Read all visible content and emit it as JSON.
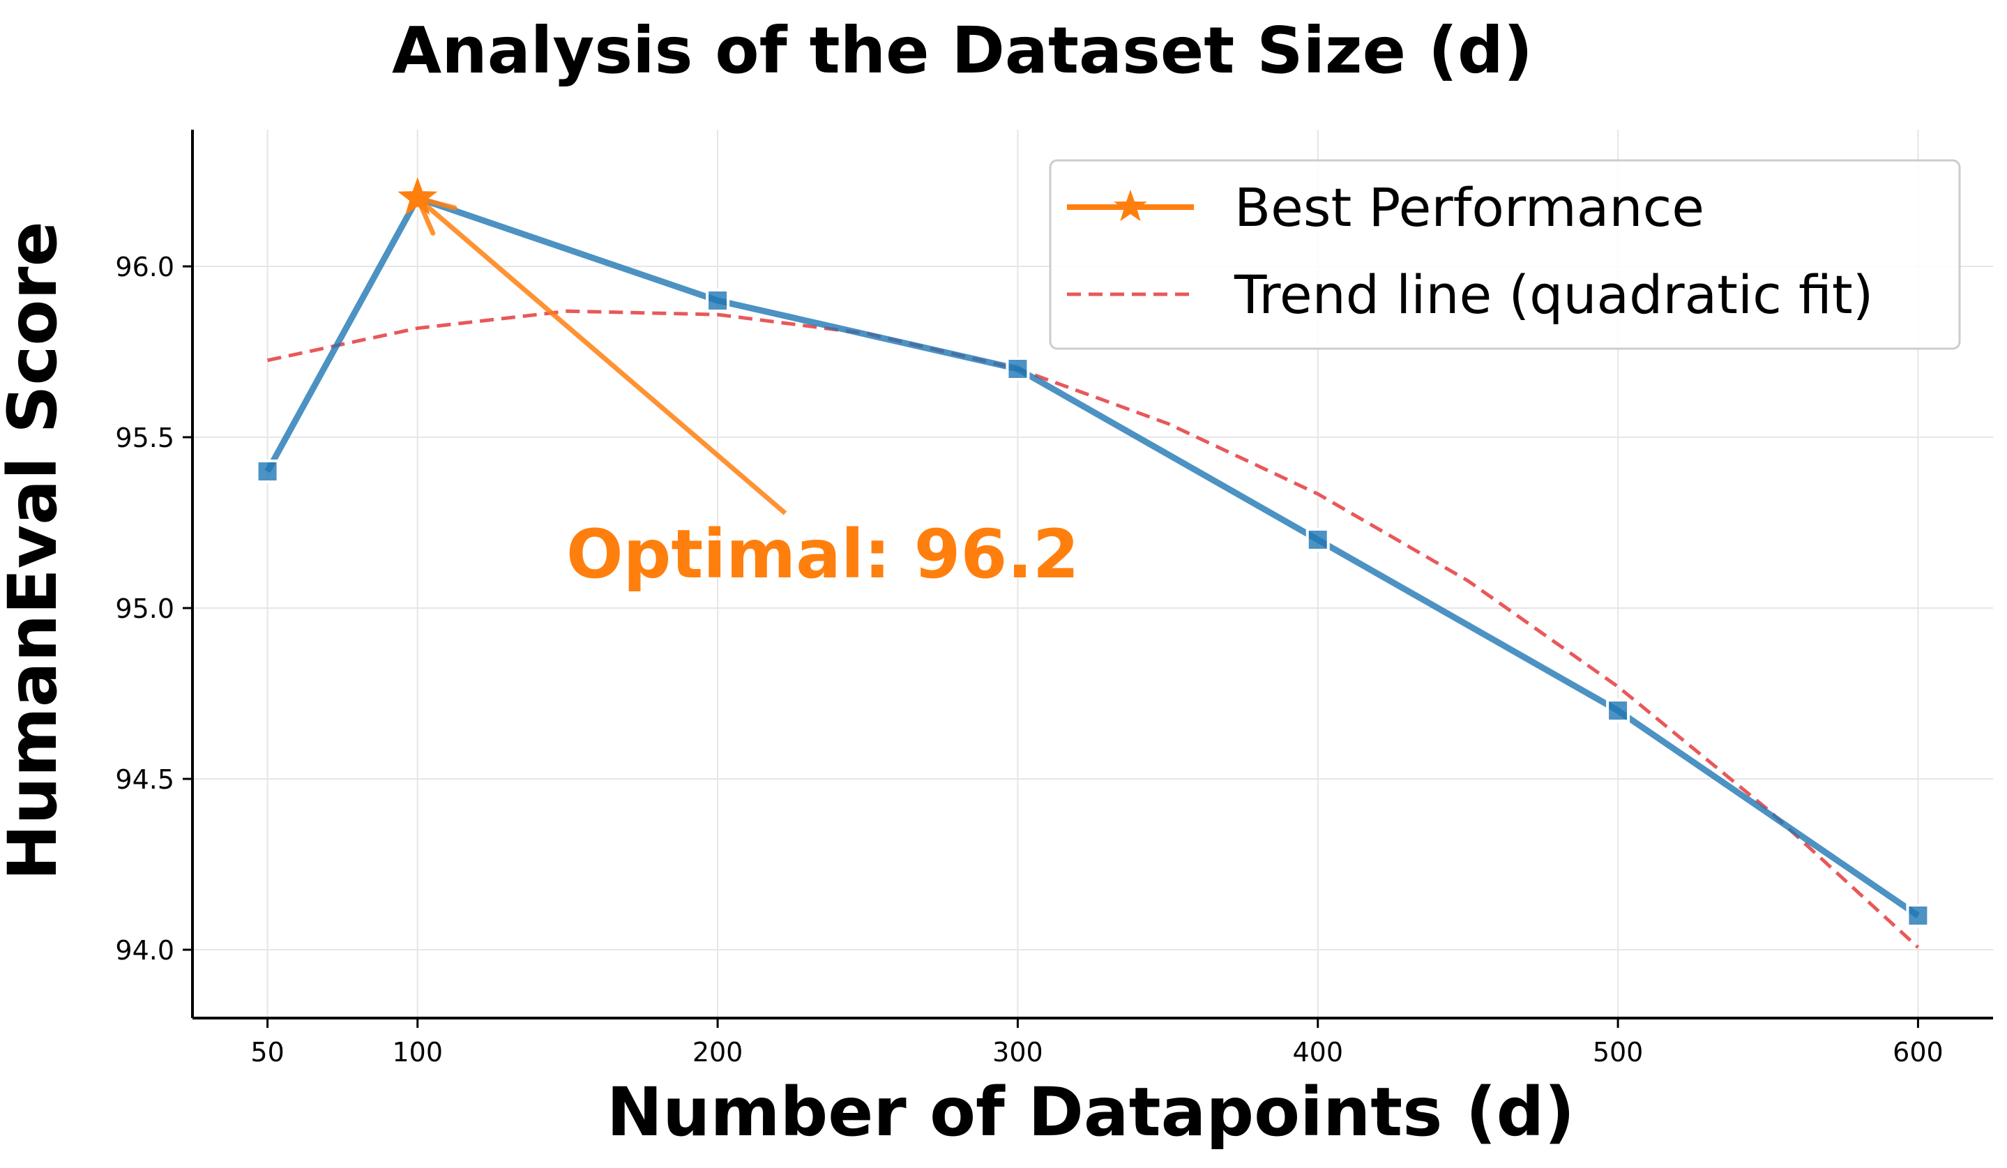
{
  "chart_data": {
    "type": "line",
    "title": "Analysis of the Dataset Size (d)",
    "xlabel": "Number of Datapoints (d)",
    "ylabel": "HumanEval Score",
    "x_ticks": [
      50,
      100,
      200,
      300,
      400,
      500,
      600
    ],
    "y_ticks": [
      94.0,
      94.5,
      95.0,
      95.5,
      96.0
    ],
    "y_tick_labels": [
      "94.0",
      "94.5",
      "95.0",
      "95.5",
      "96.0"
    ],
    "xlim": [
      25,
      625
    ],
    "ylim": [
      93.8,
      96.4
    ],
    "grid": true,
    "legend_position": "top-right",
    "series": [
      {
        "x": [
          50,
          100,
          200,
          300,
          400,
          500,
          600
        ],
        "values": [
          95.4,
          96.2,
          95.9,
          95.7,
          95.2,
          94.7,
          94.1
        ],
        "color": "#1f77b4",
        "style": "solid",
        "marker": "square"
      },
      {
        "name": "Best Performance",
        "x": [
          100
        ],
        "values": [
          96.2
        ],
        "color": "#ff7f0e",
        "marker": "star"
      },
      {
        "name": "Trend line (quadratic fit)",
        "x": [
          50,
          100,
          150,
          200,
          250,
          300,
          350,
          400,
          450,
          500,
          550,
          600
        ],
        "values": [
          95.725,
          95.819,
          95.869,
          95.859,
          95.803,
          95.7,
          95.54,
          95.334,
          95.08,
          94.77,
          94.41,
          94.007
        ],
        "color": "#e8585a",
        "style": "dashed"
      }
    ],
    "annotations": [
      {
        "text": "Optimal: 96.2",
        "x": 100,
        "y": 96.2,
        "color": "#ff7f0e"
      }
    ]
  }
}
